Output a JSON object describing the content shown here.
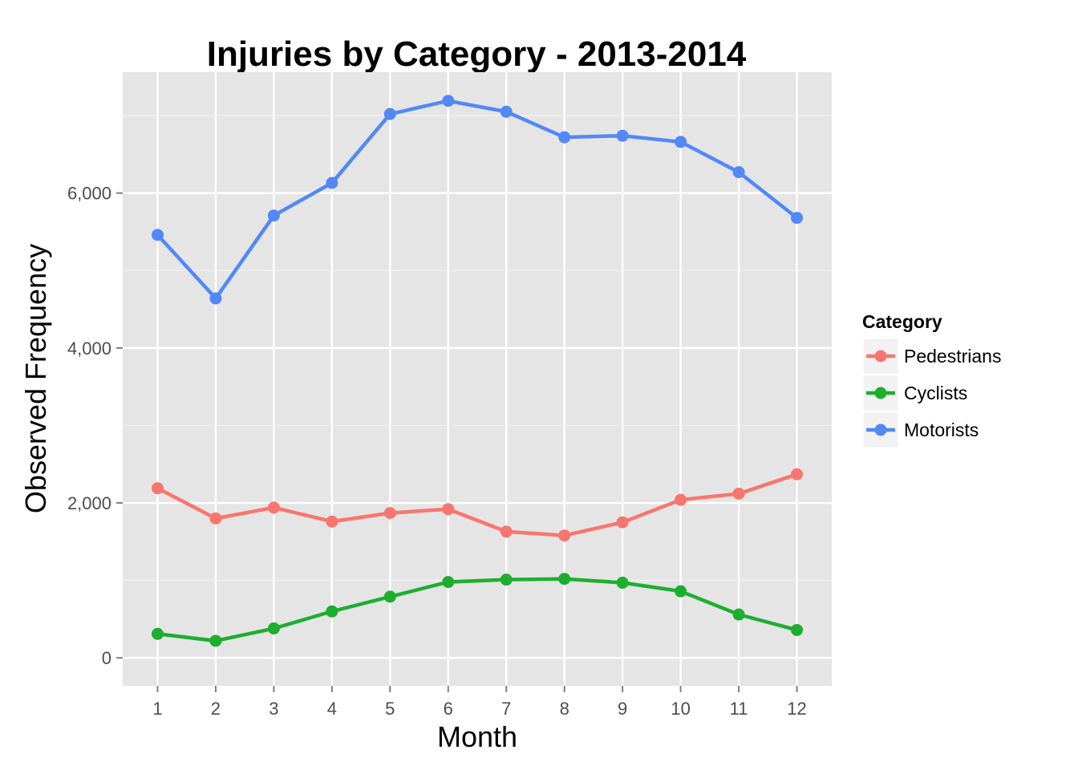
{
  "chart_data": {
    "type": "line",
    "title": "Injuries by Category - 2013-2014",
    "xlabel": "Month",
    "ylabel": "Observed Frequency",
    "x": [
      1,
      2,
      3,
      4,
      5,
      6,
      7,
      8,
      9,
      10,
      11,
      12
    ],
    "x_tick_labels": [
      "1",
      "2",
      "3",
      "4",
      "5",
      "6",
      "7",
      "8",
      "9",
      "10",
      "11",
      "12"
    ],
    "y_ticks": [
      0,
      2000,
      4000,
      6000
    ],
    "y_tick_labels": [
      "0",
      "2,000",
      "4,000",
      "6,000"
    ],
    "xlim": [
      0.4,
      12.6
    ],
    "ylim": [
      -360,
      7560
    ],
    "grid": true,
    "legend_position": "right",
    "legend_title": "Category",
    "series": [
      {
        "name": "Pedestrians",
        "color": "#F8766D",
        "values": [
          2190,
          1800,
          1940,
          1760,
          1870,
          1920,
          1630,
          1580,
          1750,
          2040,
          2120,
          2370
        ]
      },
      {
        "name": "Cyclists",
        "color": "#1DAE2F",
        "values": [
          310,
          220,
          380,
          600,
          790,
          980,
          1010,
          1020,
          970,
          860,
          560,
          360
        ]
      },
      {
        "name": "Motorists",
        "color": "#5288F7",
        "values": [
          5460,
          4640,
          5710,
          6130,
          7020,
          7190,
          7050,
          6720,
          6740,
          6660,
          6270,
          5680
        ]
      }
    ]
  }
}
